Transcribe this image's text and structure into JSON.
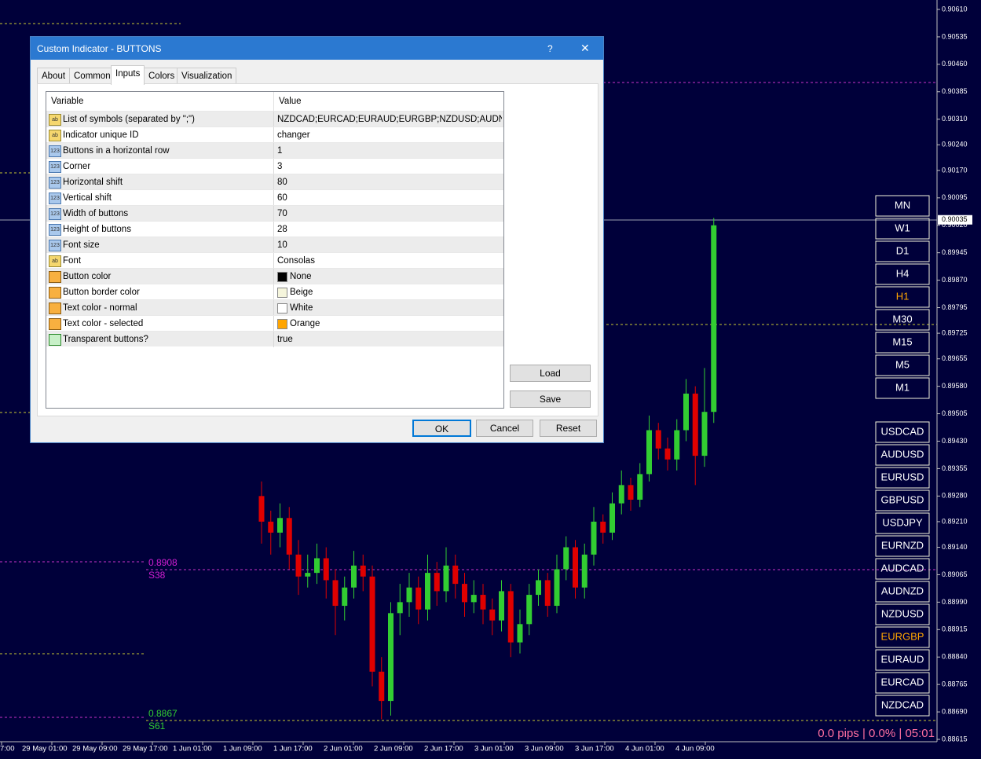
{
  "chart": {
    "price_axis": {
      "ylim": [
        0.88615,
        0.9061
      ],
      "ticks": [
        {
          "value": 0.9061,
          "label": "0.90610"
        },
        {
          "value": 0.90535,
          "label": "0.90535"
        },
        {
          "value": 0.9046,
          "label": "0.90460"
        },
        {
          "value": 0.90385,
          "label": "0.90385"
        },
        {
          "value": 0.9031,
          "label": "0.90310"
        },
        {
          "value": 0.9024,
          "label": "0.90240"
        },
        {
          "value": 0.9017,
          "label": "0.90170"
        },
        {
          "value": 0.90095,
          "label": "0.90095"
        },
        {
          "value": 0.9002,
          "label": "0.90020"
        },
        {
          "value": 0.89945,
          "label": "0.89945"
        },
        {
          "value": 0.8987,
          "label": "0.89870"
        },
        {
          "value": 0.89795,
          "label": "0.89795"
        },
        {
          "value": 0.89725,
          "label": "0.89725"
        },
        {
          "value": 0.89655,
          "label": "0.89655"
        },
        {
          "value": 0.8958,
          "label": "0.89580"
        },
        {
          "value": 0.89505,
          "label": "0.89505"
        },
        {
          "value": 0.8943,
          "label": "0.89430"
        },
        {
          "value": 0.89355,
          "label": "0.89355"
        },
        {
          "value": 0.8928,
          "label": "0.89280"
        },
        {
          "value": 0.8921,
          "label": "0.89210"
        },
        {
          "value": 0.8914,
          "label": "0.89140"
        },
        {
          "value": 0.89065,
          "label": "0.89065"
        },
        {
          "value": 0.8899,
          "label": "0.88990"
        },
        {
          "value": 0.88915,
          "label": "0.88915"
        },
        {
          "value": 0.8884,
          "label": "0.88840"
        },
        {
          "value": 0.88765,
          "label": "0.88765"
        },
        {
          "value": 0.8869,
          "label": "0.88690"
        },
        {
          "value": 0.88615,
          "label": "0.88615"
        }
      ]
    },
    "bid": {
      "value": 0.90035,
      "label": "0.90035"
    },
    "time_labels": [
      "7:00",
      "29 May 01:00",
      "29 May 09:00",
      "29 May 17:00",
      "1 Jun 01:00",
      "1 Jun 09:00",
      "1 Jun 17:00",
      "2 Jun 01:00",
      "2 Jun 09:00",
      "2 Jun 17:00",
      "3 Jun 01:00",
      "3 Jun 09:00",
      "3 Jun 17:00",
      "4 Jun 01:00",
      "4 Jun 09:00"
    ],
    "candles": [
      [
        0.8928,
        0.8932,
        0.8915,
        0.8921
      ],
      [
        0.8921,
        0.8924,
        0.8912,
        0.8918
      ],
      [
        0.8918,
        0.8926,
        0.8914,
        0.8922
      ],
      [
        0.8922,
        0.8925,
        0.8908,
        0.8912
      ],
      [
        0.8912,
        0.8916,
        0.8901,
        0.8906
      ],
      [
        0.8906,
        0.8912,
        0.8903,
        0.8907
      ],
      [
        0.8907,
        0.8915,
        0.8904,
        0.8911
      ],
      [
        0.8911,
        0.8914,
        0.89,
        0.8905
      ],
      [
        0.8905,
        0.8908,
        0.889,
        0.8898
      ],
      [
        0.8898,
        0.8906,
        0.8894,
        0.8903
      ],
      [
        0.8903,
        0.8913,
        0.89,
        0.8909
      ],
      [
        0.8909,
        0.8912,
        0.8902,
        0.8906
      ],
      [
        0.8906,
        0.8909,
        0.8876,
        0.888
      ],
      [
        0.888,
        0.8884,
        0.8867,
        0.8872
      ],
      [
        0.8872,
        0.8899,
        0.8868,
        0.8896
      ],
      [
        0.8896,
        0.8904,
        0.889,
        0.8899
      ],
      [
        0.8899,
        0.8907,
        0.8895,
        0.8903
      ],
      [
        0.8903,
        0.8906,
        0.8893,
        0.8897
      ],
      [
        0.8897,
        0.8912,
        0.8894,
        0.8907
      ],
      [
        0.8907,
        0.891,
        0.8898,
        0.8902
      ],
      [
        0.8902,
        0.8914,
        0.8899,
        0.8909
      ],
      [
        0.8909,
        0.8912,
        0.89,
        0.8904
      ],
      [
        0.8904,
        0.8907,
        0.8895,
        0.8899
      ],
      [
        0.8899,
        0.8905,
        0.8896,
        0.8901
      ],
      [
        0.8901,
        0.8904,
        0.8893,
        0.8897
      ],
      [
        0.8897,
        0.89,
        0.889,
        0.8894
      ],
      [
        0.8894,
        0.8905,
        0.8891,
        0.8902
      ],
      [
        0.8902,
        0.8904,
        0.8884,
        0.8888
      ],
      [
        0.8888,
        0.8897,
        0.8885,
        0.8893
      ],
      [
        0.8893,
        0.8904,
        0.889,
        0.8901
      ],
      [
        0.8901,
        0.8908,
        0.8898,
        0.8905
      ],
      [
        0.8905,
        0.8907,
        0.8895,
        0.8898
      ],
      [
        0.8898,
        0.8912,
        0.8896,
        0.8908
      ],
      [
        0.8908,
        0.8917,
        0.8905,
        0.8914
      ],
      [
        0.8914,
        0.8916,
        0.89,
        0.8903
      ],
      [
        0.8903,
        0.8915,
        0.89,
        0.8912
      ],
      [
        0.8912,
        0.8925,
        0.8909,
        0.8921
      ],
      [
        0.8921,
        0.8923,
        0.8915,
        0.8918
      ],
      [
        0.8918,
        0.8929,
        0.8916,
        0.8926
      ],
      [
        0.8926,
        0.8935,
        0.8923,
        0.8931
      ],
      [
        0.8931,
        0.8933,
        0.8924,
        0.8927
      ],
      [
        0.8927,
        0.8937,
        0.8925,
        0.8934
      ],
      [
        0.8934,
        0.895,
        0.8932,
        0.8946
      ],
      [
        0.8946,
        0.8948,
        0.8938,
        0.8941
      ],
      [
        0.8941,
        0.8944,
        0.8935,
        0.8938
      ],
      [
        0.8938,
        0.8949,
        0.8935,
        0.8946
      ],
      [
        0.8946,
        0.896,
        0.8943,
        0.8956
      ],
      [
        0.8956,
        0.8958,
        0.8931,
        0.8939
      ],
      [
        0.8939,
        0.8963,
        0.8936,
        0.8951
      ],
      [
        0.8951,
        0.9004,
        0.8948,
        0.9002
      ]
    ],
    "levels": [
      {
        "price": "0.8908",
        "name": "S38",
        "color": "#d21ed2"
      },
      {
        "price": "0.8867",
        "name": "S61",
        "color": "#32cd32"
      }
    ],
    "status": "0.0 pips | 0.0% | 05:01"
  },
  "timeframes": {
    "items": [
      "MN",
      "W1",
      "D1",
      "H4",
      "H1",
      "M30",
      "M15",
      "M5",
      "M1"
    ],
    "selected": 4
  },
  "symbols": {
    "items": [
      "USDCAD",
      "AUDUSD",
      "EURUSD",
      "GBPUSD",
      "USDJPY",
      "EURNZD",
      "AUDCAD",
      "AUDNZD",
      "NZDUSD",
      "EURGBP",
      "EURAUD",
      "EURCAD",
      "NZDCAD"
    ],
    "selected": 9
  },
  "dialog": {
    "title": "Custom Indicator - BUTTONS",
    "help": "?",
    "close": "✕",
    "tabs": [
      "About",
      "Common",
      "Inputs",
      "Colors",
      "Visualization"
    ],
    "active_tab": 2,
    "columns": [
      "Variable",
      "Value"
    ],
    "rows": [
      {
        "kind": "string",
        "icon": "ab",
        "variable": "List of symbols (separated by \";\")",
        "value": "NZDCAD;EURCAD;EURAUD;EURGBP;NZDUSD;AUDN..."
      },
      {
        "kind": "string",
        "icon": "ab",
        "variable": "Indicator unique ID",
        "value": "changer"
      },
      {
        "kind": "int",
        "icon": "123",
        "variable": "Buttons in a horizontal row",
        "value": "1"
      },
      {
        "kind": "int",
        "icon": "123",
        "variable": "Corner",
        "value": "3"
      },
      {
        "kind": "int",
        "icon": "123",
        "variable": "Horizontal shift",
        "value": "80"
      },
      {
        "kind": "int",
        "icon": "123",
        "variable": "Vertical shift",
        "value": "60"
      },
      {
        "kind": "int",
        "icon": "123",
        "variable": "Width of buttons",
        "value": "70"
      },
      {
        "kind": "int",
        "icon": "123",
        "variable": "Height of buttons",
        "value": "28"
      },
      {
        "kind": "int",
        "icon": "123",
        "variable": "Font size",
        "value": "10"
      },
      {
        "kind": "string",
        "icon": "ab",
        "variable": "Font",
        "value": "Consolas"
      },
      {
        "kind": "color",
        "variable": "Button color",
        "value": "None",
        "swatch": "#000000"
      },
      {
        "kind": "color",
        "variable": "Button border color",
        "value": "Beige",
        "swatch": "#f5f5dc"
      },
      {
        "kind": "color",
        "variable": "Text color - normal",
        "value": "White",
        "swatch": "#ffffff"
      },
      {
        "kind": "color",
        "variable": "Text color - selected",
        "value": "Orange",
        "swatch": "#ffa500"
      },
      {
        "kind": "bool",
        "variable": "Transparent buttons?",
        "value": "true"
      }
    ],
    "side_buttons": [
      "Load",
      "Save"
    ],
    "buttons": [
      "OK",
      "Cancel",
      "Reset"
    ]
  }
}
